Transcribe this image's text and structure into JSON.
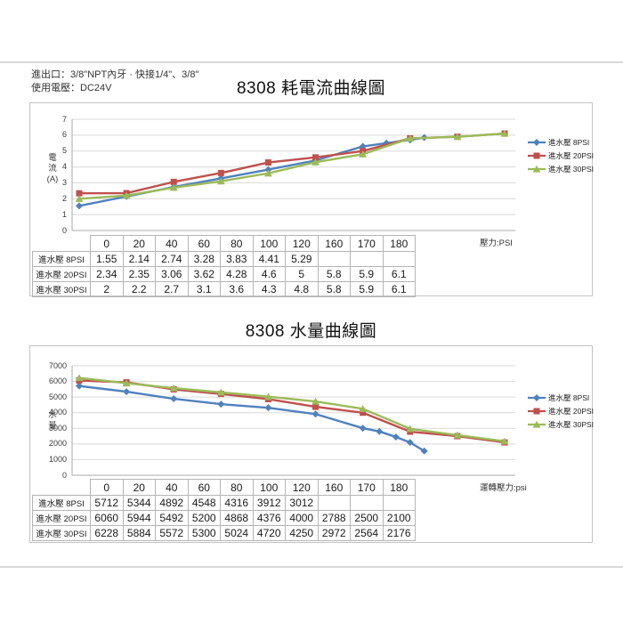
{
  "page": {
    "info_lines": [
      "進出口：3/8\"NPT內牙 · 快接1/4\"、3/8\"",
      "使用電壓：DC24V"
    ]
  },
  "colors": {
    "series_8psi": "#4F81BD",
    "series_20psi": "#C0504D",
    "series_30psi": "#9BBB59",
    "gridline": "#d9d9d9",
    "axis": "#a8a8a8",
    "table_border": "#b5b5b5"
  },
  "chart_data": [
    {
      "type": "line",
      "title": "8308 耗電流曲線圖",
      "ylabel": "電流(A)",
      "ylabel_lines": [
        "電",
        "流",
        "(A)"
      ],
      "x_unit_label": "壓力:PSI",
      "ylim": [
        0,
        7
      ],
      "ytick_step": 1,
      "grid": true,
      "legend_position": "right",
      "categories": [
        "0",
        "20",
        "40",
        "60",
        "80",
        "100",
        "120",
        "160",
        "170",
        "180"
      ],
      "series": [
        {
          "name": "進水壓 8PSI",
          "color": "#4F81BD",
          "marker": "diamond",
          "values": [
            1.55,
            2.14,
            2.74,
            3.28,
            3.83,
            4.41,
            5.29,
            null,
            null,
            null
          ],
          "extension_points_estimated": [
            [
              6.5,
              5.5
            ],
            [
              7.0,
              5.7
            ],
            [
              7.3,
              5.85
            ]
          ]
        },
        {
          "name": "進水壓 20PSI",
          "color": "#C0504D",
          "marker": "square",
          "values": [
            2.34,
            2.35,
            3.06,
            3.62,
            4.28,
            4.6,
            5,
            5.8,
            5.9,
            6.1
          ]
        },
        {
          "name": "進水壓 30PSI",
          "color": "#9BBB59",
          "marker": "triangle",
          "values": [
            2,
            2.2,
            2.7,
            3.1,
            3.6,
            4.3,
            4.8,
            5.8,
            5.9,
            6.1
          ]
        }
      ]
    },
    {
      "type": "line",
      "title": "8308 水量曲線圖",
      "ylabel": "水量",
      "ylabel_lines": [
        "水",
        "量"
      ],
      "x_unit_label": "運轉壓力:psi",
      "ylim": [
        0,
        7000
      ],
      "ytick_step": 1000,
      "grid": true,
      "legend_position": "right",
      "categories": [
        "0",
        "20",
        "40",
        "60",
        "80",
        "100",
        "120",
        "160",
        "170",
        "180"
      ],
      "series": [
        {
          "name": "進水壓 8PSI",
          "color": "#4F81BD",
          "marker": "diamond",
          "values": [
            5712,
            5344,
            4892,
            4548,
            4316,
            3912,
            3012,
            null,
            null,
            null
          ],
          "extension_points_estimated": [
            [
              6.35,
              2800
            ],
            [
              6.7,
              2450
            ],
            [
              7.0,
              2100
            ],
            [
              7.3,
              1550
            ]
          ]
        },
        {
          "name": "進水壓 20PSI",
          "color": "#C0504D",
          "marker": "square",
          "values": [
            6060,
            5944,
            5492,
            5200,
            4868,
            4376,
            4000,
            2788,
            2500,
            2100
          ]
        },
        {
          "name": "進水壓 30PSI",
          "color": "#9BBB59",
          "marker": "triangle",
          "values": [
            6228,
            5884,
            5572,
            5300,
            5024,
            4720,
            4250,
            2972,
            2564,
            2176
          ]
        }
      ]
    }
  ]
}
